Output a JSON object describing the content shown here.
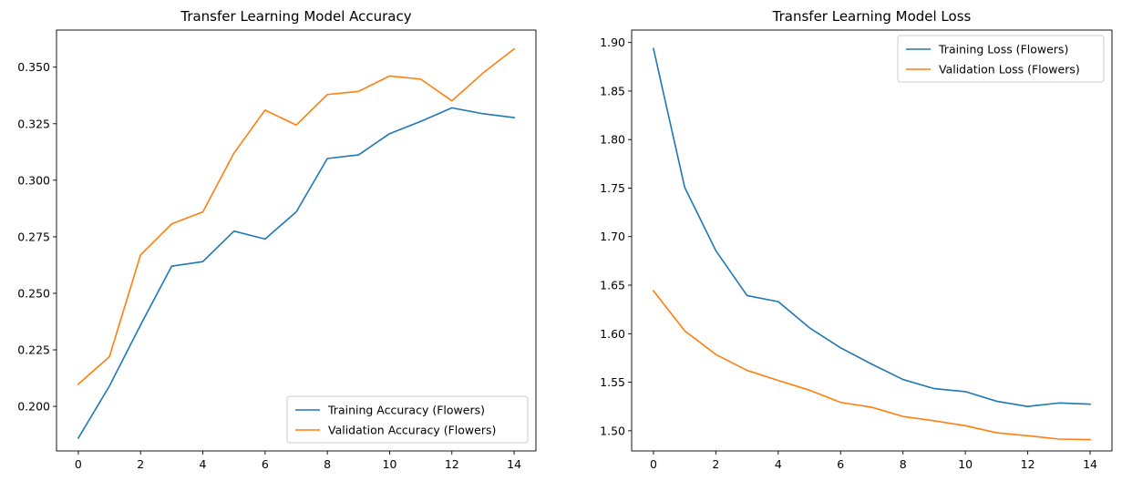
{
  "chart_data": [
    {
      "type": "line",
      "title": "Transfer Learning Model Accuracy",
      "xlabel": "",
      "ylabel": "",
      "x": [
        0,
        1,
        2,
        3,
        4,
        5,
        6,
        7,
        8,
        9,
        10,
        11,
        12,
        13,
        14
      ],
      "xlim": [
        -0.7,
        14.7
      ],
      "ylim": [
        0.1803,
        0.3664
      ],
      "xticks": [
        0,
        2,
        4,
        6,
        8,
        10,
        12,
        14
      ],
      "xtick_labels": [
        "0",
        "2",
        "4",
        "6",
        "8",
        "10",
        "12",
        "14"
      ],
      "yticks": [
        0.2,
        0.225,
        0.25,
        0.275,
        0.3,
        0.325,
        0.35
      ],
      "ytick_labels": [
        "0.200",
        "0.225",
        "0.250",
        "0.275",
        "0.300",
        "0.325",
        "0.350"
      ],
      "grid": false,
      "legend_position": "bottom-right",
      "series": [
        {
          "name": "Training Accuracy (Flowers)",
          "color": "#1f77b4",
          "values": [
            0.186,
            0.209,
            0.236,
            0.262,
            0.264,
            0.2775,
            0.274,
            0.286,
            0.3096,
            0.3112,
            0.3206,
            0.326,
            0.332,
            0.3294,
            0.3277
          ]
        },
        {
          "name": "Validation Accuracy (Flowers)",
          "color": "#ff7f0e",
          "values": [
            0.2098,
            0.222,
            0.267,
            0.2807,
            0.286,
            0.312,
            0.331,
            0.3244,
            0.3379,
            0.3393,
            0.3461,
            0.3447,
            0.3351,
            0.3474,
            0.3581
          ]
        }
      ]
    },
    {
      "type": "line",
      "title": "Transfer Learning Model Loss",
      "xlabel": "",
      "ylabel": "",
      "x": [
        0,
        1,
        2,
        3,
        4,
        5,
        6,
        7,
        8,
        9,
        10,
        11,
        12,
        13,
        14
      ],
      "xlim": [
        -0.7,
        14.7
      ],
      "ylim": [
        1.4792,
        1.9128
      ],
      "xticks": [
        0,
        2,
        4,
        6,
        8,
        10,
        12,
        14
      ],
      "xtick_labels": [
        "0",
        "2",
        "4",
        "6",
        "8",
        "10",
        "12",
        "14"
      ],
      "yticks": [
        1.5,
        1.55,
        1.6,
        1.65,
        1.7,
        1.75,
        1.8,
        1.85,
        1.9
      ],
      "ytick_labels": [
        "1.50",
        "1.55",
        "1.60",
        "1.65",
        "1.70",
        "1.75",
        "1.80",
        "1.85",
        "1.90"
      ],
      "grid": false,
      "legend_position": "top-right",
      "series": [
        {
          "name": "Training Loss (Flowers)",
          "color": "#1f77b4",
          "values": [
            1.8937,
            1.7508,
            1.6855,
            1.6393,
            1.633,
            1.6061,
            1.5854,
            1.5686,
            1.5528,
            1.5434,
            1.5403,
            1.5304,
            1.525,
            1.5286,
            1.5274
          ]
        },
        {
          "name": "Validation Loss (Flowers)",
          "color": "#ff7f0e",
          "values": [
            1.6441,
            1.603,
            1.5786,
            1.5622,
            1.5518,
            1.5418,
            1.5292,
            1.5242,
            1.5147,
            1.5102,
            1.5052,
            1.4979,
            1.4949,
            1.4914,
            1.4909
          ]
        }
      ]
    }
  ]
}
